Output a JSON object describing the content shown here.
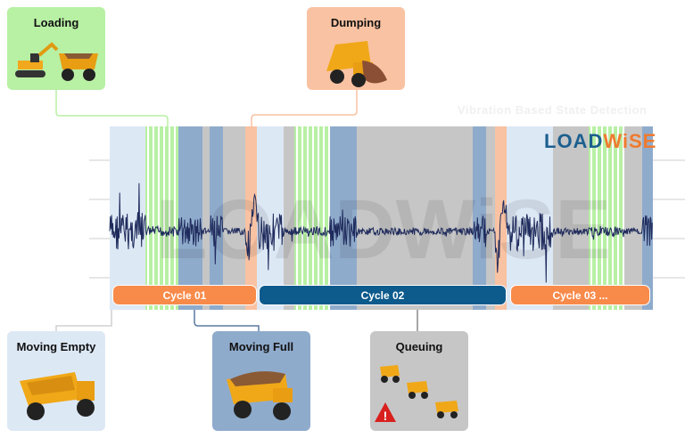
{
  "subtitle": "Vibration Based State Detection",
  "logo": {
    "part1": "LOAD",
    "part2": "WiSE",
    "color1": "#1c5f8f",
    "color2": "#f07a2e"
  },
  "watermark": "LOADWiSE",
  "states": {
    "loading": {
      "label": "Loading",
      "color": "#b8f0a4"
    },
    "dumping": {
      "label": "Dumping",
      "color": "#f9c2a2"
    },
    "moving_empty": {
      "label": "Moving Empty",
      "color": "#dde8f5"
    },
    "moving_full": {
      "label": "Moving Full",
      "color": "#8fabcc"
    },
    "queuing": {
      "label": "Queuing",
      "color": "#c6c6c6"
    }
  },
  "cycles": [
    {
      "label": "Cycle 01",
      "color": "#f88a4a"
    },
    {
      "label": "Cycle 02",
      "color": "#0d5a8c"
    },
    {
      "label": "Cycle 03 ...",
      "color": "#f88a4a"
    }
  ],
  "signal_color": "#1f2b5c"
}
